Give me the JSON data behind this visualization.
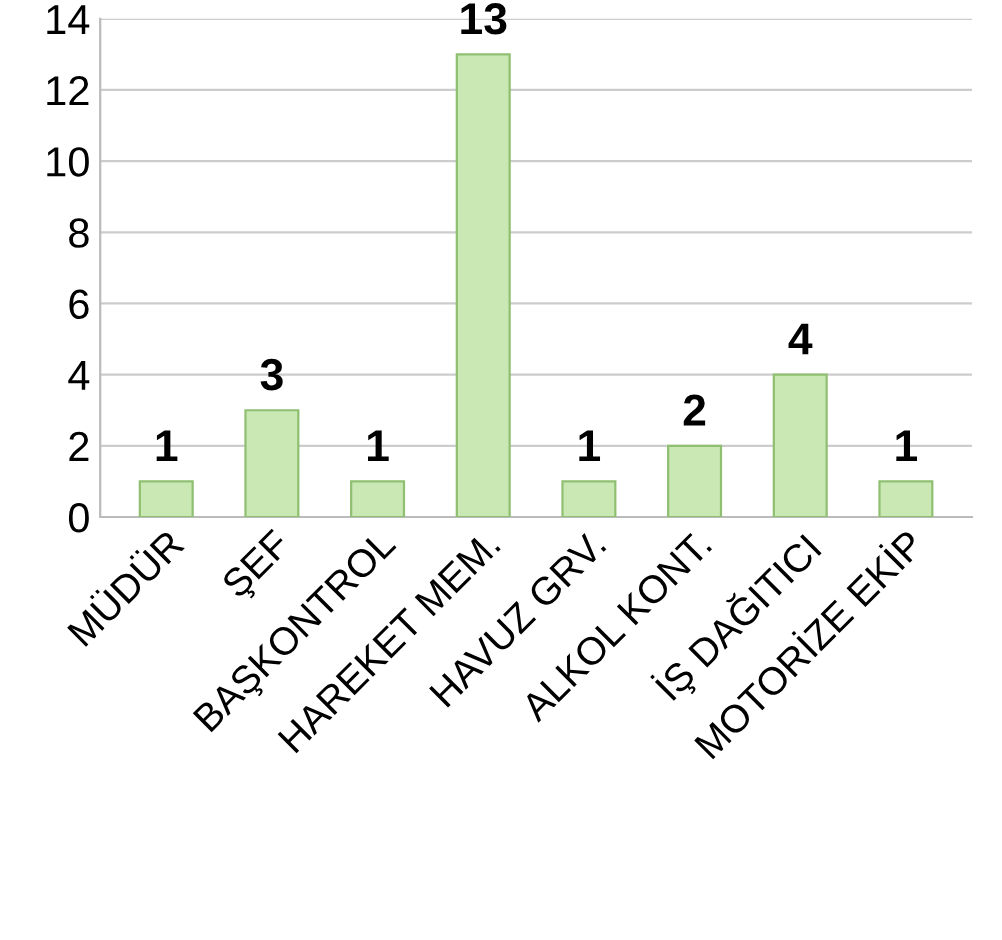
{
  "chart_data": {
    "type": "bar",
    "categories": [
      "MÜDÜR",
      "ŞEF",
      "BAŞKONTROL",
      "HAREKET MEM.",
      "HAVUZ GRV.",
      "ALKOL KONT.",
      "İŞ DAĞITICI",
      "MOTORİZE EKİP"
    ],
    "values": [
      1,
      3,
      1,
      13,
      1,
      2,
      4,
      1
    ],
    "color": "#c9e8b4",
    "ylim": [
      0,
      14
    ],
    "yticks": [
      0,
      2,
      4,
      6,
      8,
      10,
      12,
      14
    ],
    "grid": "y",
    "data_labels": true
  }
}
